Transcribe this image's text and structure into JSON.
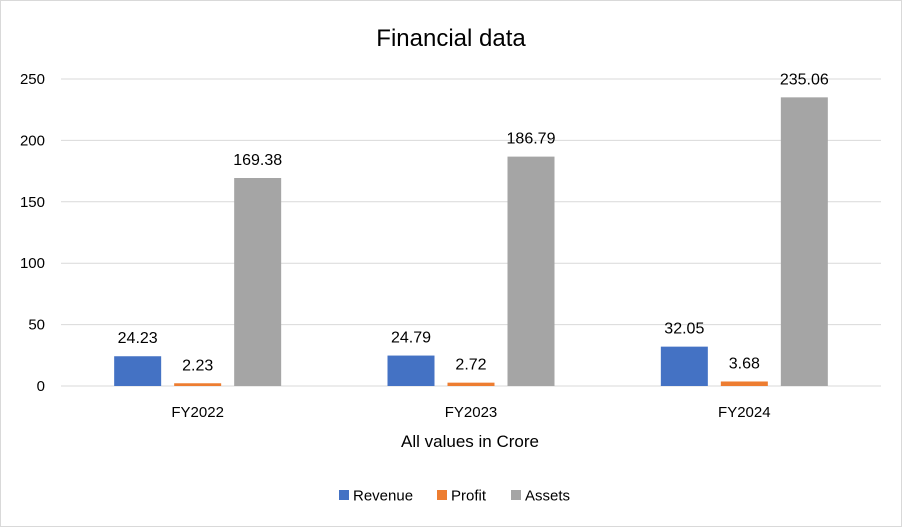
{
  "chart_data": {
    "type": "bar",
    "title": "Financial data",
    "xlabel": "All values in Crore",
    "ylabel": "",
    "categories": [
      "FY2022",
      "FY2023",
      "FY2024"
    ],
    "ylim": [
      0,
      250
    ],
    "yticks": [
      0,
      50,
      100,
      150,
      200,
      250
    ],
    "grid": true,
    "legend": "bottom",
    "series": [
      {
        "name": "Revenue",
        "color": "#4472c4",
        "values": [
          24.23,
          24.79,
          32.05
        ]
      },
      {
        "name": "Profit",
        "color": "#ed7d31",
        "values": [
          2.23,
          2.72,
          3.68
        ]
      },
      {
        "name": "Assets",
        "color": "#a5a5a5",
        "values": [
          169.38,
          186.79,
          235.06
        ]
      }
    ]
  }
}
